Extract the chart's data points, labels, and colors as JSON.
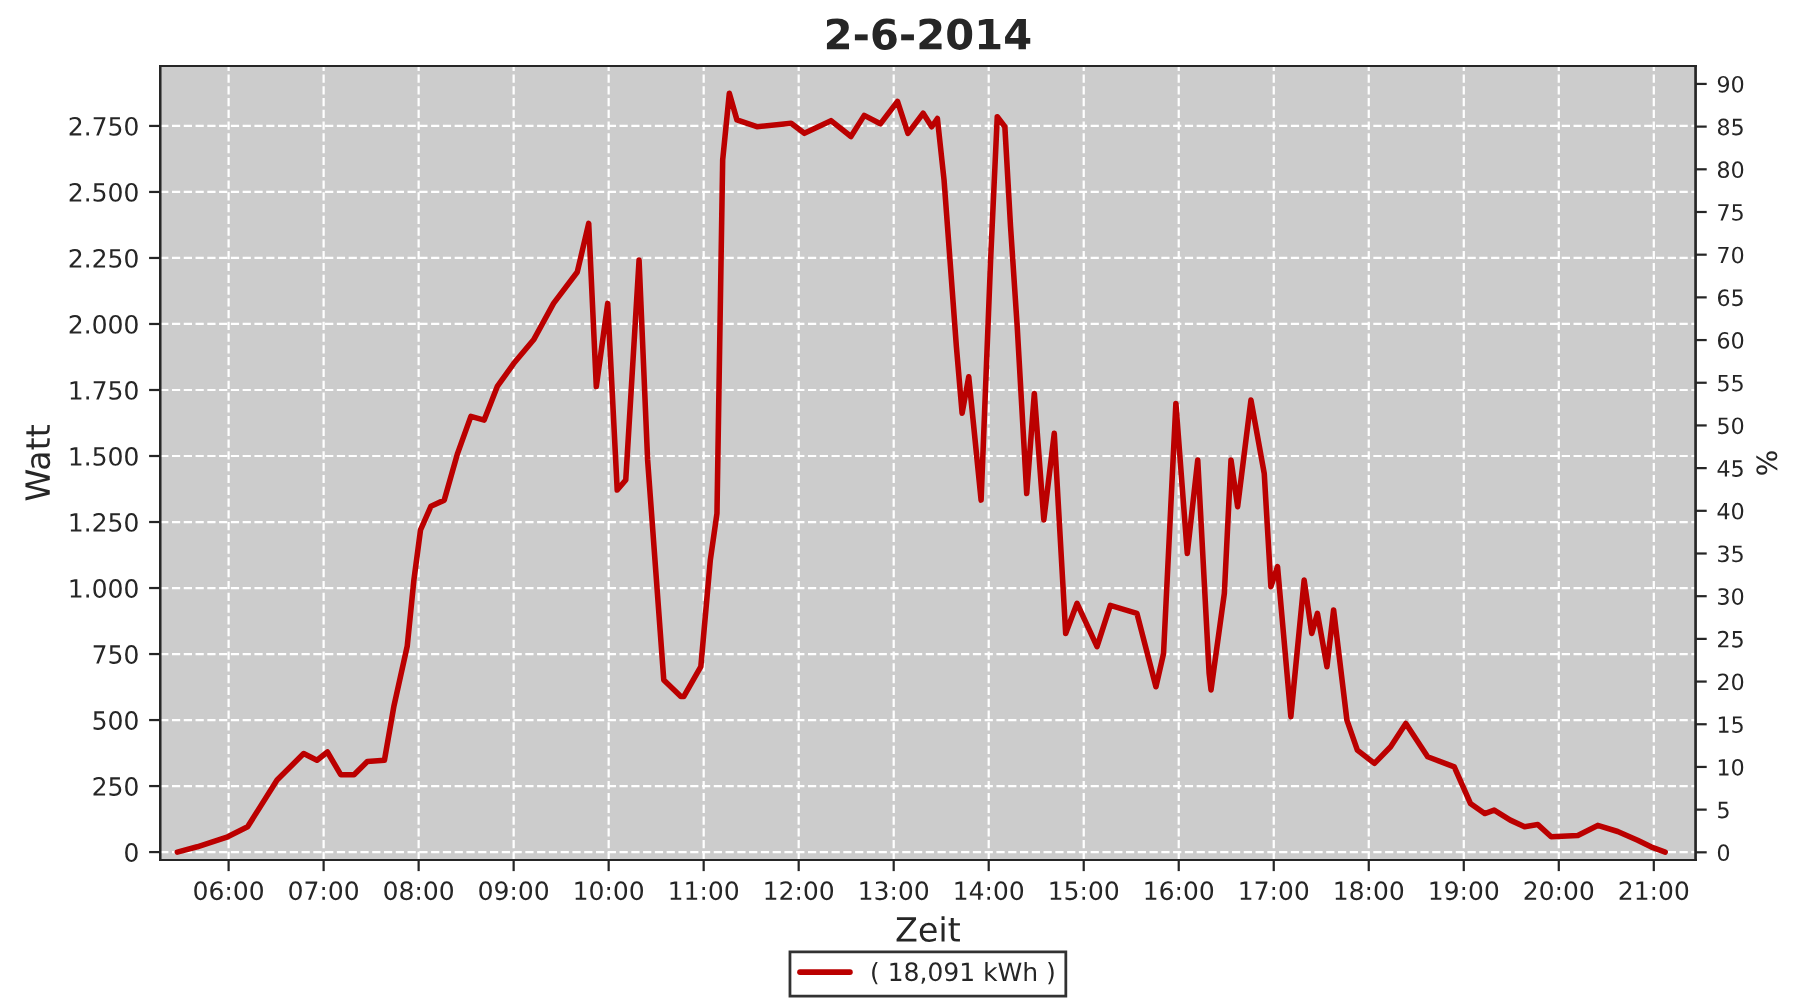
{
  "chart_data": {
    "type": "line",
    "title": "2-6-2014",
    "xlabel": "Zeit",
    "ylabel": "Watt",
    "y2label": "%",
    "x": [
      5.46,
      5.67,
      5.99,
      6.2,
      6.51,
      6.79,
      6.93,
      7.04,
      7.18,
      7.32,
      7.46,
      7.64,
      7.74,
      7.88,
      7.95,
      8.02,
      8.13,
      8.27,
      8.41,
      8.55,
      8.69,
      8.83,
      9.0,
      9.21,
      9.42,
      9.67,
      9.79,
      9.87,
      9.99,
      10.09,
      10.18,
      10.32,
      10.41,
      10.58,
      10.76,
      10.79,
      10.97,
      11.07,
      11.14,
      11.2,
      11.27,
      11.35,
      11.56,
      11.92,
      12.06,
      12.34,
      12.55,
      12.69,
      12.86,
      13.04,
      13.15,
      13.31,
      13.4,
      13.46,
      13.53,
      13.66,
      13.72,
      13.79,
      13.92,
      14.02,
      14.09,
      14.17,
      14.23,
      14.3,
      14.4,
      14.48,
      14.58,
      14.69,
      14.81,
      14.93,
      15.14,
      15.28,
      15.56,
      15.76,
      15.84,
      15.97,
      16.09,
      16.2,
      16.32,
      16.34,
      16.48,
      16.55,
      16.62,
      16.76,
      16.9,
      16.97,
      17.04,
      17.18,
      17.32,
      17.4,
      17.46,
      17.56,
      17.63,
      17.77,
      17.88,
      18.06,
      18.23,
      18.39,
      18.62,
      18.9,
      19.07,
      19.22,
      19.32,
      19.49,
      19.64,
      19.78,
      19.92,
      20.2,
      20.41,
      20.62,
      20.83,
      20.97,
      21.12
    ],
    "series": [
      {
        "name": "( 18,091 kWh )",
        "color": "#bb0000",
        "values": [
          0,
          20,
          58,
          96,
          273,
          373,
          348,
          379,
          293,
          293,
          343,
          348,
          553,
          780,
          1030,
          1220,
          1310,
          1333,
          1510,
          1650,
          1636,
          1765,
          1850,
          1940,
          2078,
          2197,
          2381,
          1763,
          2078,
          1371,
          1409,
          2242,
          1485,
          652,
          589,
          589,
          702,
          1106,
          1283,
          2621,
          2874,
          2773,
          2747,
          2760,
          2722,
          2770,
          2710,
          2790,
          2758,
          2843,
          2722,
          2798,
          2747,
          2778,
          2545,
          1914,
          1662,
          1800,
          1333,
          2242,
          2785,
          2747,
          2368,
          1990,
          1358,
          1737,
          1258,
          1586,
          828,
          942,
          778,
          934,
          904,
          626,
          752,
          1699,
          1131,
          1485,
          677,
          614,
          980,
          1485,
          1308,
          1712,
          1434,
          1005,
          1081,
          513,
          1030,
          828,
          904,
          702,
          917,
          500,
          386,
          336,
          399,
          487,
          361,
          323,
          184,
          146,
          159,
          121,
          96,
          104,
          58,
          63,
          101,
          78,
          45,
          20,
          0
        ]
      }
    ],
    "xlim": [
      5.28,
      21.44
    ],
    "xticks": [
      {
        "value": 6,
        "label": "06:00"
      },
      {
        "value": 7,
        "label": "07:00"
      },
      {
        "value": 8,
        "label": "08:00"
      },
      {
        "value": 9,
        "label": "09:00"
      },
      {
        "value": 10,
        "label": "10:00"
      },
      {
        "value": 11,
        "label": "11:00"
      },
      {
        "value": 12,
        "label": "12:00"
      },
      {
        "value": 13,
        "label": "13:00"
      },
      {
        "value": 14,
        "label": "14:00"
      },
      {
        "value": 15,
        "label": "15:00"
      },
      {
        "value": 16,
        "label": "16:00"
      },
      {
        "value": 17,
        "label": "17:00"
      },
      {
        "value": 18,
        "label": "18:00"
      },
      {
        "value": 19,
        "label": "19:00"
      },
      {
        "value": 20,
        "label": "20:00"
      },
      {
        "value": 21,
        "label": "21:00"
      }
    ],
    "ylim": [
      -30,
      2977
    ],
    "yticks": [
      0,
      250,
      500,
      750,
      {
        "value": 1000,
        "label": "1.000"
      },
      {
        "value": 1250,
        "label": "1.250"
      },
      {
        "value": 1500,
        "label": "1.500"
      },
      {
        "value": 1750,
        "label": "1.750"
      },
      {
        "value": 2000,
        "label": "2.000"
      },
      {
        "value": 2250,
        "label": "2.250"
      },
      {
        "value": 2500,
        "label": "2.500"
      },
      {
        "value": 2750,
        "label": "2.750"
      }
    ],
    "y2lim": [
      -0.9,
      92.1
    ],
    "y2ticks": [
      0,
      5,
      10,
      15,
      20,
      25,
      30,
      35,
      40,
      45,
      50,
      55,
      60,
      65,
      70,
      75,
      80,
      85,
      90
    ],
    "grid": true,
    "legend": "bottom",
    "marker": "none",
    "line_style": "solid"
  }
}
